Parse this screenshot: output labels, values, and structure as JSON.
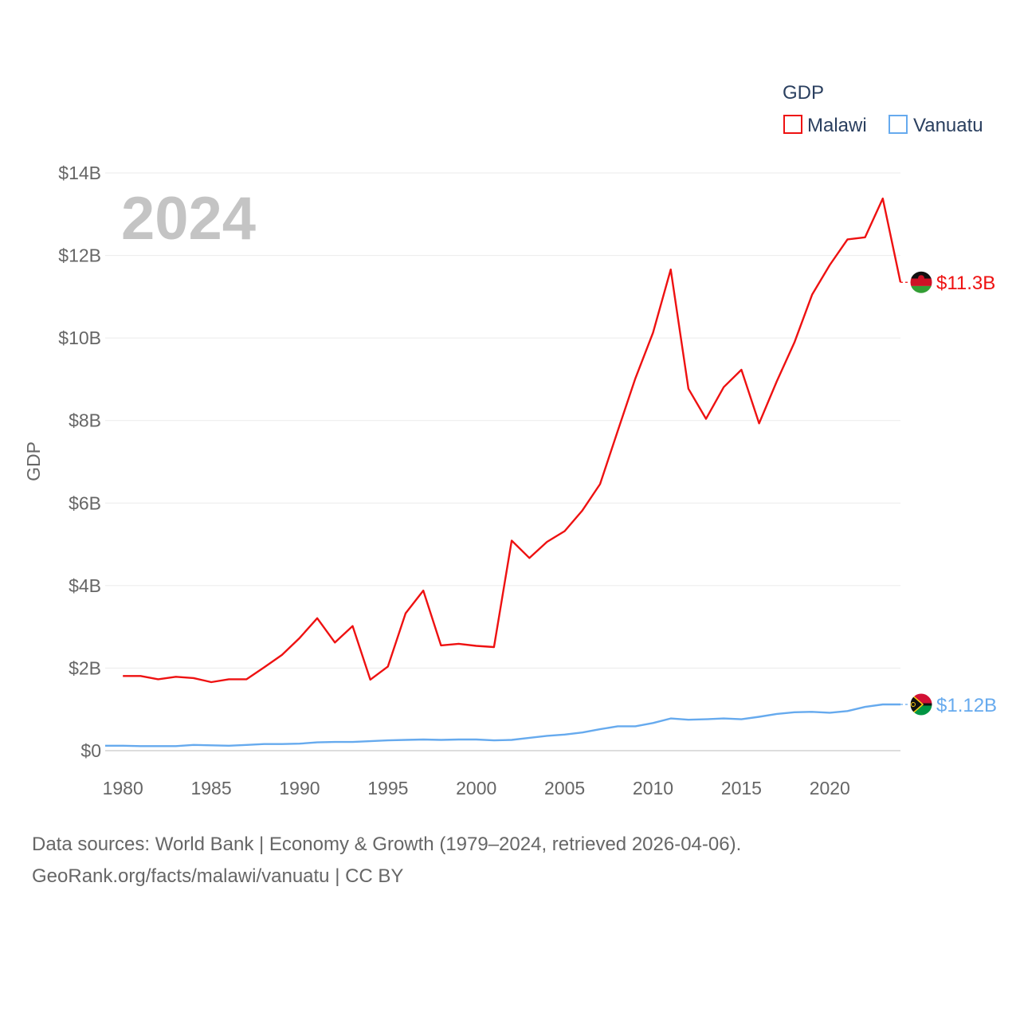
{
  "chart_data": {
    "type": "line",
    "year_label": "2024",
    "ylabel": "GDP",
    "xlabel": "",
    "ylim": [
      0,
      14
    ],
    "yticks": [
      0,
      2,
      4,
      6,
      8,
      10,
      12,
      14
    ],
    "ytick_labels": [
      "$0",
      "$2B",
      "$4B",
      "$6B",
      "$8B",
      "$10B",
      "$12B",
      "$14B"
    ],
    "xlim": [
      1979,
      2024
    ],
    "xticks": [
      1980,
      1985,
      1990,
      1995,
      2000,
      2005,
      2010,
      2015,
      2020
    ],
    "xtick_labels": [
      "1980",
      "1985",
      "1990",
      "1995",
      "2000",
      "2005",
      "2010",
      "2015",
      "2020"
    ],
    "legend_title": "GDP",
    "legend_position": "top-right",
    "grid": true,
    "series": [
      {
        "name": "Malawi",
        "color": "#ee1111",
        "end_label": "$11.3B",
        "flag": "malawi-flag",
        "x": [
          1980,
          1981,
          1982,
          1983,
          1984,
          1985,
          1986,
          1987,
          1988,
          1989,
          1990,
          1991,
          1992,
          1993,
          1994,
          1995,
          1996,
          1997,
          1998,
          1999,
          2000,
          2001,
          2002,
          2003,
          2004,
          2005,
          2006,
          2007,
          2008,
          2009,
          2010,
          2011,
          2012,
          2013,
          2014,
          2015,
          2016,
          2017,
          2018,
          2019,
          2020,
          2021,
          2022,
          2023,
          2024
        ],
        "values": [
          1.81,
          1.81,
          1.73,
          1.79,
          1.76,
          1.66,
          1.73,
          1.73,
          2.02,
          2.32,
          2.73,
          3.21,
          2.62,
          3.02,
          1.72,
          2.04,
          3.33,
          3.88,
          2.55,
          2.59,
          2.54,
          2.51,
          5.09,
          4.67,
          5.06,
          5.32,
          5.82,
          6.46,
          7.75,
          9.02,
          10.13,
          11.66,
          8.77,
          8.04,
          8.81,
          9.23,
          7.93,
          8.95,
          9.89,
          11.05,
          11.77,
          12.39,
          12.44,
          13.38,
          11.35
        ]
      },
      {
        "name": "Vanuatu",
        "color": "#66aaee",
        "end_label": "$1.12B",
        "flag": "vanuatu-flag",
        "x": [
          1979,
          1980,
          1981,
          1982,
          1983,
          1984,
          1985,
          1986,
          1987,
          1988,
          1989,
          1990,
          1991,
          1992,
          1993,
          1994,
          1995,
          1996,
          1997,
          1998,
          1999,
          2000,
          2001,
          2002,
          2003,
          2004,
          2005,
          2006,
          2007,
          2008,
          2009,
          2010,
          2011,
          2012,
          2013,
          2014,
          2015,
          2016,
          2017,
          2018,
          2019,
          2020,
          2021,
          2022,
          2023,
          2024
        ],
        "values": [
          0.12,
          0.12,
          0.11,
          0.11,
          0.11,
          0.14,
          0.13,
          0.12,
          0.14,
          0.16,
          0.16,
          0.17,
          0.2,
          0.21,
          0.21,
          0.23,
          0.25,
          0.26,
          0.27,
          0.26,
          0.27,
          0.27,
          0.25,
          0.26,
          0.31,
          0.36,
          0.39,
          0.44,
          0.52,
          0.59,
          0.59,
          0.67,
          0.78,
          0.75,
          0.76,
          0.78,
          0.76,
          0.82,
          0.89,
          0.93,
          0.94,
          0.92,
          0.96,
          1.06,
          1.12,
          1.12
        ]
      }
    ]
  },
  "source": {
    "line1": "Data sources: World Bank | Economy & Growth (1979–2024, retrieved 2026-04-06).",
    "line2": "GeoRank.org/facts/malawi/vanuatu | CC BY"
  }
}
